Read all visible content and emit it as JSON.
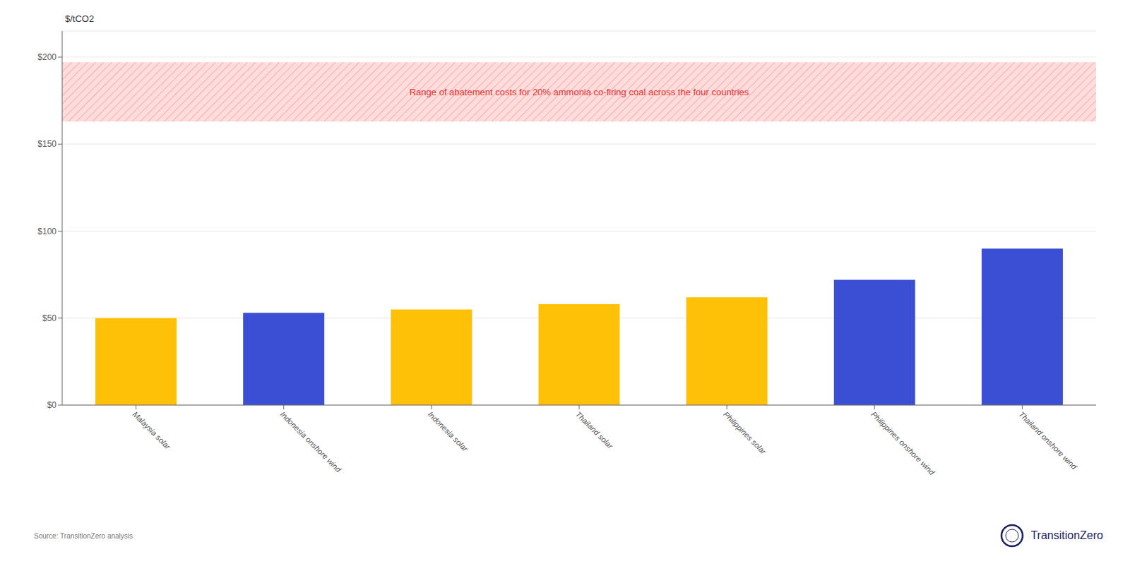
{
  "chart_data": {
    "type": "bar",
    "categories": [
      "Malaysia solar",
      "Indonesia onshore wind",
      "Indonesia solar",
      "Thailand solar",
      "Philippines solar",
      "Philippines onshore wind",
      "Thailand onshore wind"
    ],
    "values": [
      50,
      53,
      55,
      58,
      62,
      72,
      90
    ],
    "colors": [
      "#FFC107",
      "#3B4FD4",
      "#FFC107",
      "#FFC107",
      "#FFC107",
      "#3B4FD4",
      "#3B4FD4"
    ],
    "ylabel": "$/tCO2",
    "ylim": [
      0,
      215
    ],
    "yticks": [
      {
        "value": 0,
        "label": "$0"
      },
      {
        "value": 50,
        "label": "$50"
      },
      {
        "value": 100,
        "label": "$100"
      },
      {
        "value": 150,
        "label": "$150"
      },
      {
        "value": 200,
        "label": "$200"
      }
    ],
    "grid": true,
    "annotations": [
      {
        "text": "Range of abatement costs for 20% ammonia co-firing coal across the four countries",
        "y_range": [
          163,
          197
        ],
        "color": "#E83030",
        "fill": "#FFDDDD",
        "edge_color": "#FF9999"
      }
    ],
    "source": "Source: TransitionZero analysis",
    "logo": {
      "text": "TransitionZero",
      "color": "#1a2060"
    }
  }
}
